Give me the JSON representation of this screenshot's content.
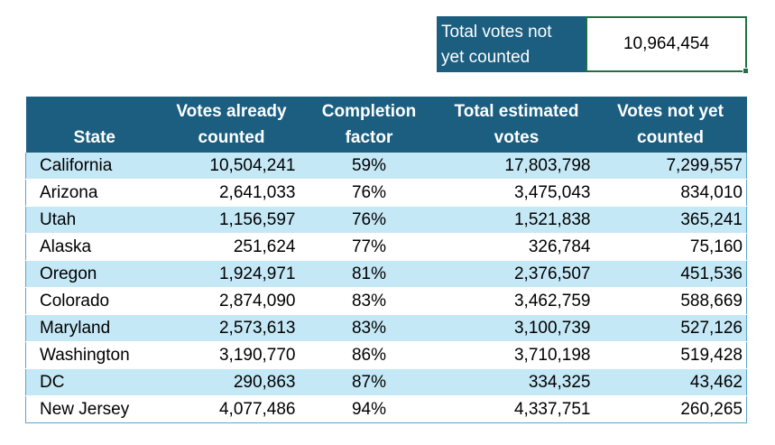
{
  "summary": {
    "label_line1": "Total votes not",
    "label_line2": "yet counted",
    "value": "10,964,454"
  },
  "table": {
    "headers": {
      "state": "State",
      "counted_line1": "Votes already",
      "counted_line2": "counted",
      "completion_line1": "Completion",
      "completion_line2": "factor",
      "estimated_line1": "Total estimated",
      "estimated_line2": "votes",
      "remaining_line1": "Votes not yet",
      "remaining_line2": "counted"
    },
    "rows": [
      {
        "state": "California",
        "counted": "10,504,241",
        "completion": "59%",
        "estimated": "17,803,798",
        "remaining": "7,299,557"
      },
      {
        "state": "Arizona",
        "counted": "2,641,033",
        "completion": "76%",
        "estimated": "3,475,043",
        "remaining": "834,010"
      },
      {
        "state": "Utah",
        "counted": "1,156,597",
        "completion": "76%",
        "estimated": "1,521,838",
        "remaining": "365,241"
      },
      {
        "state": "Alaska",
        "counted": "251,624",
        "completion": "77%",
        "estimated": "326,784",
        "remaining": "75,160"
      },
      {
        "state": "Oregon",
        "counted": "1,924,971",
        "completion": "81%",
        "estimated": "2,376,507",
        "remaining": "451,536"
      },
      {
        "state": "Colorado",
        "counted": "2,874,090",
        "completion": "83%",
        "estimated": "3,462,759",
        "remaining": "588,669"
      },
      {
        "state": "Maryland",
        "counted": "2,573,613",
        "completion": "83%",
        "estimated": "3,100,739",
        "remaining": "527,126"
      },
      {
        "state": "Washington",
        "counted": "3,190,770",
        "completion": "86%",
        "estimated": "3,710,198",
        "remaining": "519,428"
      },
      {
        "state": "DC",
        "counted": "290,863",
        "completion": "87%",
        "estimated": "334,325",
        "remaining": "43,462"
      },
      {
        "state": "New Jersey",
        "counted": "4,077,486",
        "completion": "94%",
        "estimated": "4,337,751",
        "remaining": "260,265"
      }
    ]
  }
}
